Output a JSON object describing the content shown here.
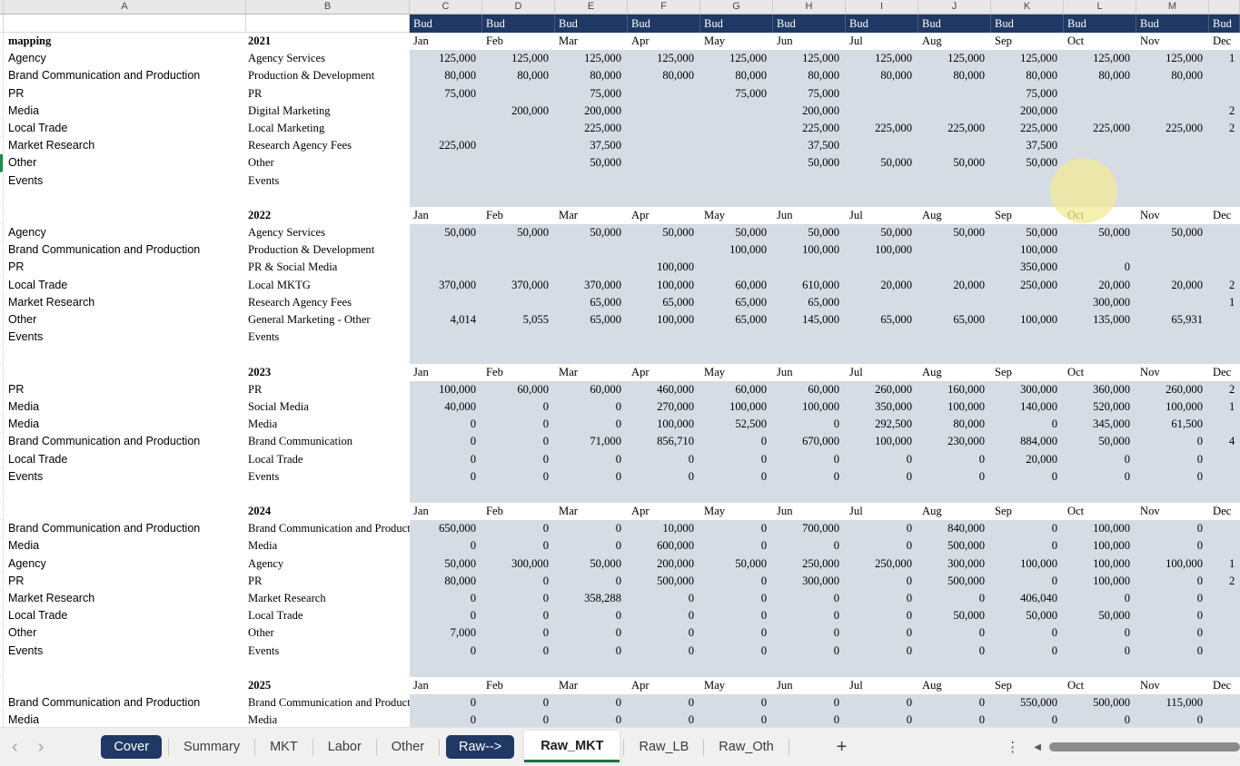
{
  "colors": {
    "navy": "#1f3864",
    "data_fill": "#d6dce4",
    "active_tab_green": "#1e7145",
    "highlight_yellow": "#f1e996",
    "selection_green": "#1f8a4a"
  },
  "column_letters": [
    "A",
    "B",
    "C",
    "D",
    "E",
    "F",
    "G",
    "H",
    "I",
    "J",
    "K",
    "L",
    "M",
    ""
  ],
  "header": {
    "bud_label": "Bud",
    "mapping_label": "mapping"
  },
  "months": [
    "Jan",
    "Feb",
    "Mar",
    "Apr",
    "May",
    "Jun",
    "Jul",
    "Aug",
    "Sep",
    "Oct",
    "Nov",
    "Dec"
  ],
  "blocks": [
    {
      "year": "2021",
      "rows": [
        {
          "a": "Agency",
          "b": "Agency Services",
          "v": [
            "125,000",
            "125,000",
            "125,000",
            "125,000",
            "125,000",
            "125,000",
            "125,000",
            "125,000",
            "125,000",
            "125,000",
            "125,000",
            "1"
          ]
        },
        {
          "a": "Brand Communication and Production",
          "b": "Production & Development",
          "v": [
            "80,000",
            "80,000",
            "80,000",
            "80,000",
            "80,000",
            "80,000",
            "80,000",
            "80,000",
            "80,000",
            "80,000",
            "80,000",
            ""
          ]
        },
        {
          "a": "PR",
          "b": "PR",
          "v": [
            "75,000",
            "",
            "75,000",
            "",
            "75,000",
            "75,000",
            "",
            "",
            "75,000",
            "",
            "",
            ""
          ]
        },
        {
          "a": "Media",
          "b": "Digital Marketing",
          "v": [
            "",
            "200,000",
            "200,000",
            "",
            "",
            "200,000",
            "",
            "",
            "200,000",
            "",
            "",
            "2"
          ]
        },
        {
          "a": "Local Trade",
          "b": "Local Marketing",
          "v": [
            "",
            "",
            "225,000",
            "",
            "",
            "225,000",
            "225,000",
            "225,000",
            "225,000",
            "225,000",
            "225,000",
            "2"
          ]
        },
        {
          "a": "Market Research",
          "b": "Research Agency Fees",
          "v": [
            "225,000",
            "",
            "37,500",
            "",
            "",
            "37,500",
            "",
            "",
            "37,500",
            "",
            "",
            ""
          ]
        },
        {
          "a": "Other",
          "b": "Other",
          "selected": true,
          "v": [
            "",
            "",
            "50,000",
            "",
            "",
            "50,000",
            "50,000",
            "50,000",
            "50,000",
            "",
            "",
            ""
          ]
        },
        {
          "a": "Events",
          "b": "Events",
          "v": [
            "",
            "",
            "",
            "",
            "",
            "",
            "",
            "",
            "",
            "",
            "",
            ""
          ]
        }
      ]
    },
    {
      "year": "2022",
      "rows": [
        {
          "a": "Agency",
          "b": "Agency Services",
          "v": [
            "50,000",
            "50,000",
            "50,000",
            "50,000",
            "50,000",
            "50,000",
            "50,000",
            "50,000",
            "50,000",
            "50,000",
            "50,000",
            ""
          ]
        },
        {
          "a": "Brand Communication and Production",
          "b": "Production & Development",
          "v": [
            "",
            "",
            "",
            "",
            "100,000",
            "100,000",
            "100,000",
            "",
            "100,000",
            "",
            "",
            ""
          ]
        },
        {
          "a": "PR",
          "b": "PR & Social Media",
          "v": [
            "",
            "",
            "",
            "100,000",
            "",
            "",
            "",
            "",
            "350,000",
            "0",
            "",
            ""
          ]
        },
        {
          "a": "Local Trade",
          "b": "Local MKTG",
          "v": [
            "370,000",
            "370,000",
            "370,000",
            "100,000",
            "60,000",
            "610,000",
            "20,000",
            "20,000",
            "250,000",
            "20,000",
            "20,000",
            "2"
          ]
        },
        {
          "a": "Market Research",
          "b": "Research Agency Fees",
          "v": [
            "",
            "",
            "65,000",
            "65,000",
            "65,000",
            "65,000",
            "",
            "",
            "",
            "300,000",
            "",
            "1"
          ]
        },
        {
          "a": "Other",
          "b": "General Marketing - Other",
          "v": [
            "4,014",
            "5,055",
            "65,000",
            "100,000",
            "65,000",
            "145,000",
            "65,000",
            "65,000",
            "100,000",
            "135,000",
            "65,931",
            ""
          ]
        },
        {
          "a": "Events",
          "b": "Events",
          "v": [
            "",
            "",
            "",
            "",
            "",
            "",
            "",
            "",
            "",
            "",
            "",
            ""
          ]
        }
      ]
    },
    {
      "year": "2023",
      "rows": [
        {
          "a": "PR",
          "b": "PR",
          "v": [
            "100,000",
            "60,000",
            "60,000",
            "460,000",
            "60,000",
            "60,000",
            "260,000",
            "160,000",
            "300,000",
            "360,000",
            "260,000",
            "2"
          ]
        },
        {
          "a": "Media",
          "b": "Social Media",
          "v": [
            "40,000",
            "0",
            "0",
            "270,000",
            "100,000",
            "100,000",
            "350,000",
            "100,000",
            "140,000",
            "520,000",
            "100,000",
            "1"
          ]
        },
        {
          "a": "Media",
          "b": "Media",
          "v": [
            "0",
            "0",
            "0",
            "100,000",
            "52,500",
            "0",
            "292,500",
            "80,000",
            "0",
            "345,000",
            "61,500",
            ""
          ]
        },
        {
          "a": "Brand Communication and Production",
          "b": "Brand Communication",
          "v": [
            "0",
            "0",
            "71,000",
            "856,710",
            "0",
            "670,000",
            "100,000",
            "230,000",
            "884,000",
            "50,000",
            "0",
            "4"
          ]
        },
        {
          "a": "Local Trade",
          "b": "Local Trade",
          "v": [
            "0",
            "0",
            "0",
            "0",
            "0",
            "0",
            "0",
            "0",
            "20,000",
            "0",
            "0",
            ""
          ]
        },
        {
          "a": "Events",
          "b": "Events",
          "v": [
            "0",
            "0",
            "0",
            "0",
            "0",
            "0",
            "0",
            "0",
            "0",
            "0",
            "0",
            ""
          ]
        }
      ]
    },
    {
      "year": "2024",
      "rows": [
        {
          "a": "Brand Communication and Production",
          "b": "Brand Communication and Production",
          "v": [
            "650,000",
            "0",
            "0",
            "10,000",
            "0",
            "700,000",
            "0",
            "840,000",
            "0",
            "100,000",
            "0",
            ""
          ]
        },
        {
          "a": "Media",
          "b": "Media",
          "v": [
            "0",
            "0",
            "0",
            "600,000",
            "0",
            "0",
            "0",
            "500,000",
            "0",
            "100,000",
            "0",
            ""
          ]
        },
        {
          "a": "Agency",
          "b": "Agency",
          "v": [
            "50,000",
            "300,000",
            "50,000",
            "200,000",
            "50,000",
            "250,000",
            "250,000",
            "300,000",
            "100,000",
            "100,000",
            "100,000",
            "1"
          ]
        },
        {
          "a": "PR",
          "b": "PR",
          "v": [
            "80,000",
            "0",
            "0",
            "500,000",
            "0",
            "300,000",
            "0",
            "500,000",
            "0",
            "100,000",
            "0",
            "2"
          ]
        },
        {
          "a": "Market Research",
          "b": "Market Research",
          "v": [
            "0",
            "0",
            "358,288",
            "0",
            "0",
            "0",
            "0",
            "0",
            "406,040",
            "0",
            "0",
            ""
          ]
        },
        {
          "a": "Local Trade",
          "b": "Local Trade",
          "v": [
            "0",
            "0",
            "0",
            "0",
            "0",
            "0",
            "0",
            "50,000",
            "50,000",
            "50,000",
            "0",
            ""
          ]
        },
        {
          "a": "Other",
          "b": "Other",
          "v": [
            "7,000",
            "0",
            "0",
            "0",
            "0",
            "0",
            "0",
            "0",
            "0",
            "0",
            "0",
            ""
          ]
        },
        {
          "a": "Events",
          "b": "Events",
          "v": [
            "0",
            "0",
            "0",
            "0",
            "0",
            "0",
            "0",
            "0",
            "0",
            "0",
            "0",
            ""
          ]
        }
      ]
    },
    {
      "year": "2025",
      "rows": [
        {
          "a": "Brand Communication and Production",
          "b": "Brand Communication and Production",
          "v": [
            "0",
            "0",
            "0",
            "0",
            "0",
            "0",
            "0",
            "0",
            "550,000",
            "500,000",
            "115,000",
            ""
          ]
        },
        {
          "a": "Media",
          "b": "Media",
          "v": [
            "0",
            "0",
            "0",
            "0",
            "0",
            "0",
            "0",
            "0",
            "0",
            "0",
            "0",
            ""
          ]
        }
      ]
    }
  ],
  "tabbar": {
    "nav_prev": "‹",
    "nav_next": "›",
    "tabs": [
      {
        "label": "Cover",
        "style": "pill"
      },
      {
        "label": "Summary",
        "style": "plain"
      },
      {
        "label": "MKT",
        "style": "plain"
      },
      {
        "label": "Labor",
        "style": "plain"
      },
      {
        "label": "Other",
        "style": "plain"
      },
      {
        "label": "Raw-->",
        "style": "pill"
      },
      {
        "label": "Raw_MKT",
        "style": "active"
      },
      {
        "label": "Raw_LB",
        "style": "plain"
      },
      {
        "label": "Raw_Oth",
        "style": "plain"
      }
    ],
    "add_label": "+",
    "more_label": "⋮",
    "scroll_left_arrow": "◀"
  }
}
